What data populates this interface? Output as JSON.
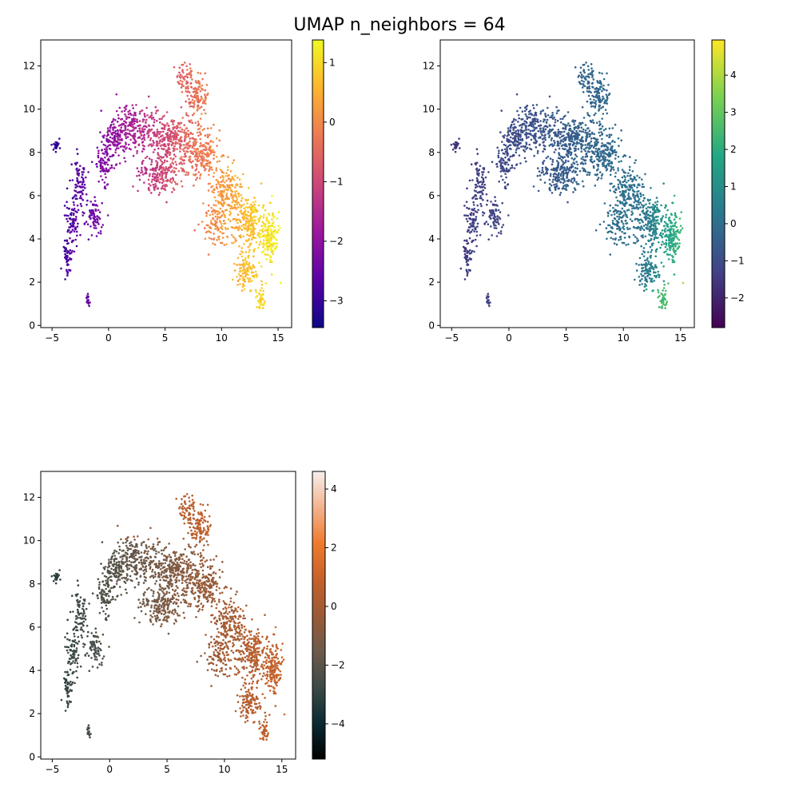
{
  "figure": {
    "title": "UMAP n_neighbors = 64"
  },
  "chart_data": [
    {
      "type": "scatter",
      "colormap": "plasma",
      "xlim": [
        -6,
        16.2
      ],
      "ylim": [
        -0.1,
        13.2
      ],
      "xticks": [
        -5,
        0,
        5,
        10,
        15
      ],
      "yticks": [
        0,
        2,
        4,
        6,
        8,
        10,
        12
      ],
      "colorbar": {
        "range": [
          -3.45,
          1.38
        ],
        "ticks": [
          -3,
          -2,
          -1,
          0,
          1
        ],
        "tick_labels": [
          "−3",
          "−2",
          "−1",
          "0",
          "1"
        ]
      },
      "color_trend": "increases from left (purple) to right (yellow)"
    },
    {
      "type": "scatter",
      "colormap": "viridis",
      "xlim": [
        -6,
        16.2
      ],
      "ylim": [
        -0.1,
        13.2
      ],
      "xticks": [
        -5,
        0,
        5,
        10,
        15
      ],
      "yticks": [
        0,
        2,
        4,
        6,
        8,
        10,
        12
      ],
      "colorbar": {
        "range": [
          -2.8,
          4.95
        ],
        "ticks": [
          -2,
          -1,
          0,
          1,
          2,
          3,
          4
        ],
        "tick_labels": [
          "−2",
          "−1",
          "0",
          "1",
          "2",
          "3",
          "4"
        ]
      },
      "color_trend": "mostly blue-teal, highest (green) at far right x≈13-15"
    },
    {
      "type": "scatter",
      "colormap": "cubehelix-orange",
      "xlim": [
        -6,
        16.2
      ],
      "ylim": [
        -0.1,
        13.2
      ],
      "xticks": [
        -5,
        0,
        5,
        10,
        15
      ],
      "yticks": [
        0,
        2,
        4,
        6,
        8,
        10,
        12
      ],
      "colorbar": {
        "range": [
          -5.2,
          4.6
        ],
        "ticks": [
          -4,
          -2,
          0,
          2,
          4
        ],
        "tick_labels": [
          "−4",
          "−2",
          "0",
          "2",
          "4"
        ]
      },
      "color_trend": "dark slate at left, brown in middle, orange at right and top"
    }
  ],
  "colors": {
    "plasma": [
      "#0d0887",
      "#5c01a6",
      "#9c179e",
      "#cc4778",
      "#ed7953",
      "#fdb42f",
      "#f0f921"
    ],
    "viridis": [
      "#440154",
      "#414487",
      "#2a788e",
      "#22a884",
      "#7ad151",
      "#fde725"
    ],
    "cubehelix-orange": [
      "#000000",
      "#0a2a33",
      "#3d4a46",
      "#6e5a4a",
      "#9a5a36",
      "#c6612a",
      "#ef7a2c",
      "#f3b38e",
      "#f6efec"
    ]
  }
}
